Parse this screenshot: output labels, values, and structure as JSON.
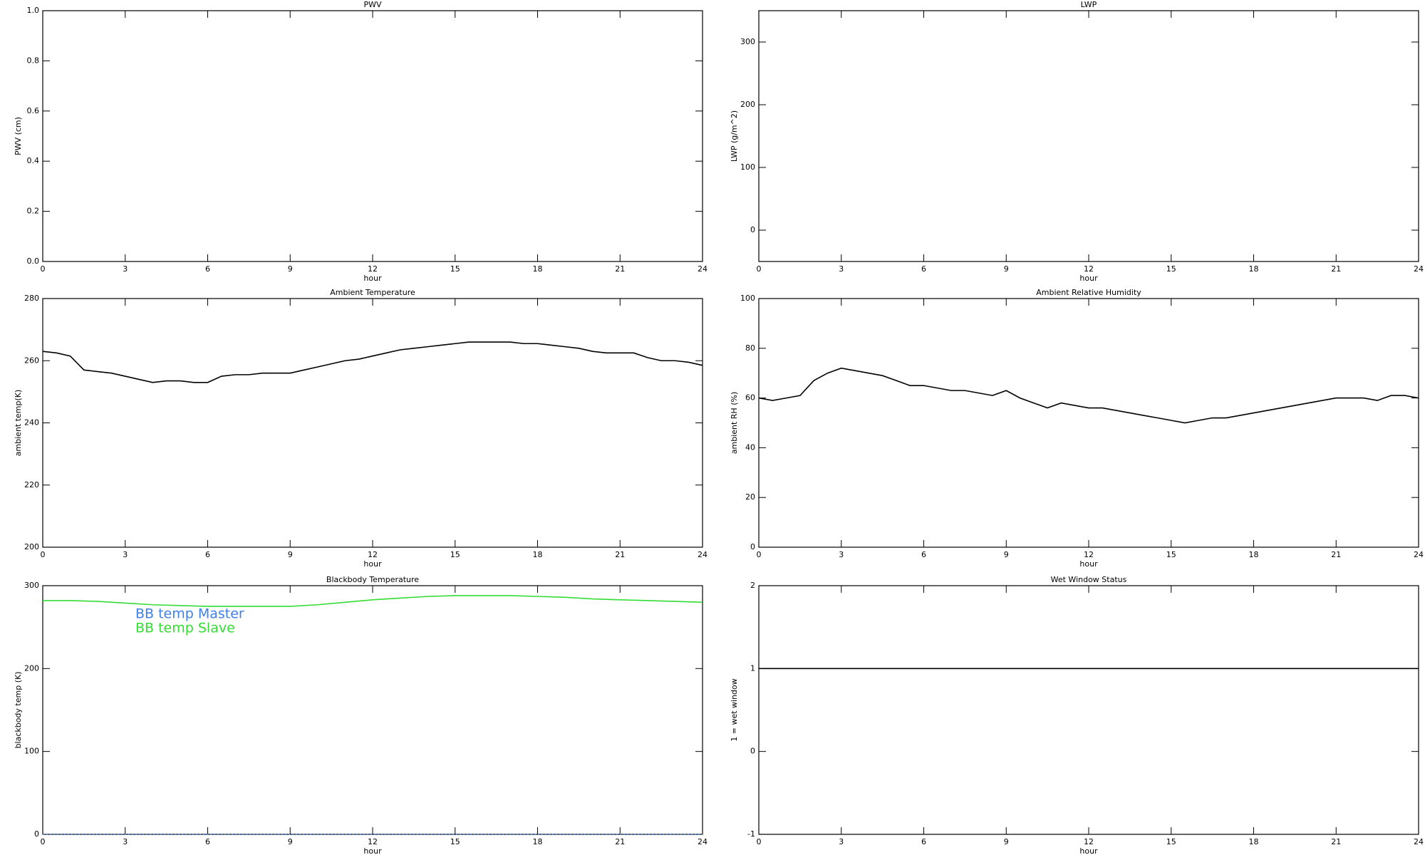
{
  "chart_data": [
    {
      "type": "line",
      "title": "PWV",
      "ylabel": "PWV (cm)",
      "xlabel": "hour",
      "xlim": [
        0,
        24
      ],
      "xticks": [
        0,
        3,
        6,
        9,
        12,
        15,
        18,
        21,
        24
      ],
      "ylim": [
        0,
        1
      ],
      "yticks": [
        {
          "value": 0,
          "label": "0.0"
        },
        0.2,
        0.4,
        0.6,
        0.8,
        {
          "value": 1,
          "label": "1.0"
        }
      ]
    },
    {
      "type": "line",
      "title": "LWP",
      "ylabel": "LWP (g/m^2)",
      "xlabel": "hour",
      "xlim": [
        0,
        24
      ],
      "xticks": [
        0,
        3,
        6,
        9,
        12,
        15,
        18,
        21,
        24
      ],
      "ylim": [
        -50,
        350
      ],
      "yticks": [
        0,
        100,
        200,
        300
      ]
    },
    {
      "type": "line",
      "title": "Ambient Temperature",
      "ylabel": "ambient temp(K)",
      "xlabel": "hour",
      "xlim": [
        0,
        24
      ],
      "xticks": [
        0,
        3,
        6,
        9,
        12,
        15,
        18,
        21,
        24
      ],
      "ylim": [
        200,
        280
      ],
      "yticks": [
        200,
        220,
        240,
        260,
        280
      ],
      "x": [
        0,
        0.5,
        1,
        1.5,
        2,
        2.5,
        3,
        3.5,
        4,
        4.5,
        5,
        5.5,
        6,
        6.5,
        7,
        7.5,
        8,
        8.5,
        9,
        9.5,
        10,
        10.5,
        11,
        11.5,
        12,
        12.5,
        13,
        13.5,
        14,
        14.5,
        15,
        15.5,
        16,
        16.5,
        17,
        17.5,
        18,
        18.5,
        19,
        19.5,
        20,
        20.5,
        21,
        21.5,
        22,
        22.5,
        23,
        23.5,
        24
      ],
      "series": [
        {
          "color": "#000000",
          "values": [
            263,
            262.5,
            261.5,
            257,
            256.5,
            256,
            255,
            254,
            253,
            253.5,
            253.5,
            253,
            253,
            255,
            255.5,
            255.5,
            256,
            256,
            256,
            257,
            258,
            259,
            260,
            260.5,
            261.5,
            262.5,
            263.5,
            264,
            264.5,
            265,
            265.5,
            266,
            266,
            266,
            266,
            265.5,
            265.5,
            265,
            264.5,
            264,
            263,
            262.5,
            262.5,
            262.5,
            261,
            260,
            260,
            259.5,
            258.5
          ]
        }
      ]
    },
    {
      "type": "line",
      "title": "Ambient Relative Humidity",
      "ylabel": "ambient RH (%)",
      "xlabel": "hour",
      "xlim": [
        0,
        24
      ],
      "xticks": [
        0,
        3,
        6,
        9,
        12,
        15,
        18,
        21,
        24
      ],
      "ylim": [
        0,
        100
      ],
      "yticks": [
        0,
        20,
        40,
        60,
        80,
        100
      ],
      "x": [
        0,
        0.5,
        1,
        1.5,
        2,
        2.5,
        3,
        3.5,
        4,
        4.5,
        5,
        5.5,
        6,
        6.5,
        7,
        7.5,
        8,
        8.5,
        9,
        9.5,
        10,
        10.5,
        11,
        11.5,
        12,
        12.5,
        13,
        13.5,
        14,
        14.5,
        15,
        15.5,
        16,
        16.5,
        17,
        17.5,
        18,
        18.5,
        19,
        19.5,
        20,
        20.5,
        21,
        21.5,
        22,
        22.5,
        23,
        23.5,
        24
      ],
      "series": [
        {
          "color": "#000000",
          "values": [
            60,
            59,
            60,
            61,
            67,
            70,
            72,
            71,
            70,
            69,
            67,
            65,
            65,
            64,
            63,
            63,
            62,
            61,
            63,
            60,
            58,
            56,
            58,
            57,
            56,
            56,
            55,
            54,
            53,
            52,
            51,
            50,
            51,
            52,
            52,
            53,
            54,
            55,
            56,
            57,
            58,
            59,
            60,
            60,
            60,
            59,
            61,
            61,
            60
          ]
        }
      ]
    },
    {
      "type": "line",
      "title": "Blackbody Temperature",
      "ylabel": "blackbody temp (K)",
      "xlabel": "hour",
      "xlim": [
        0,
        24
      ],
      "xticks": [
        0,
        3,
        6,
        9,
        12,
        15,
        18,
        21,
        24
      ],
      "ylim": [
        0,
        300
      ],
      "yticks": [
        0,
        100,
        200,
        300
      ],
      "legend": "upper left",
      "x": [
        0,
        1,
        2,
        3,
        4,
        5,
        6,
        7,
        8,
        9,
        10,
        11,
        12,
        13,
        14,
        15,
        16,
        17,
        18,
        19,
        20,
        21,
        22,
        23,
        24
      ],
      "series": [
        {
          "name": "BB temp Master",
          "color": "#3f7fe8",
          "values": [
            0,
            0,
            0,
            0,
            0,
            0,
            0,
            0,
            0,
            0,
            0,
            0,
            0,
            0,
            0,
            0,
            0,
            0,
            0,
            0,
            0,
            0,
            0,
            0,
            0
          ]
        },
        {
          "name": "BB temp Slave",
          "color": "#33dd33",
          "values": [
            282,
            282,
            281,
            279,
            277,
            276,
            275,
            275,
            275,
            275,
            277,
            280,
            283,
            285,
            287,
            288,
            288,
            288,
            287,
            286,
            284,
            283,
            282,
            281,
            280
          ]
        }
      ]
    },
    {
      "type": "line",
      "title": "Wet Window Status",
      "ylabel": "1 = wet window",
      "xlabel": "hour",
      "xlim": [
        0,
        24
      ],
      "xticks": [
        0,
        3,
        6,
        9,
        12,
        15,
        18,
        21,
        24
      ],
      "ylim": [
        -1,
        2
      ],
      "yticks": [
        -1,
        0,
        1,
        2
      ],
      "x": [
        0,
        24
      ],
      "series": [
        {
          "color": "#000000",
          "values": [
            1,
            1
          ]
        }
      ]
    }
  ]
}
